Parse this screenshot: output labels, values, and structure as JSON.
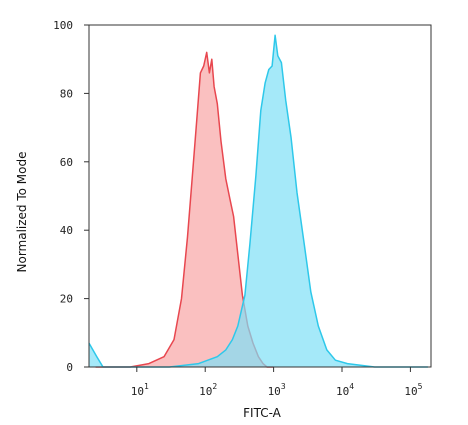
{
  "chart_data": {
    "type": "area",
    "xlabel": "FITC-A",
    "ylabel": "Normalized To Mode",
    "xscale": "log",
    "xlim": [
      2,
      200000
    ],
    "ylim": [
      0,
      100
    ],
    "yticks": [
      0,
      20,
      40,
      60,
      80,
      100
    ],
    "xticks": [
      {
        "base": "10",
        "exp": "1",
        "value": 10
      },
      {
        "base": "10",
        "exp": "2",
        "value": 100
      },
      {
        "base": "10",
        "exp": "3",
        "value": 1000
      },
      {
        "base": "10",
        "exp": "4",
        "value": 10000
      },
      {
        "base": "10",
        "exp": "5",
        "value": 100000
      }
    ],
    "grid": false,
    "legend": "none",
    "series": [
      {
        "color": "#e8474f",
        "fill": "#f8a5a5",
        "x": [
          2.5,
          8,
          15,
          25,
          35,
          45,
          55,
          65,
          75,
          85,
          95,
          105,
          115,
          125,
          135,
          150,
          170,
          200,
          230,
          260,
          300,
          350,
          420,
          500,
          600,
          700,
          800,
          1000
        ],
        "y": [
          0,
          0,
          1,
          3,
          8,
          20,
          38,
          56,
          72,
          86,
          88,
          92,
          86,
          90,
          82,
          77,
          66,
          55,
          49,
          44,
          33,
          21,
          12,
          7,
          3,
          1,
          0,
          0
        ]
      },
      {
        "color": "#2ec8ea",
        "fill": "#7fdff6",
        "x": [
          2,
          2.6,
          3.2,
          5,
          30,
          80,
          150,
          200,
          250,
          300,
          380,
          450,
          550,
          650,
          750,
          850,
          950,
          1050,
          1150,
          1300,
          1500,
          1800,
          2200,
          2800,
          3500,
          4500,
          6000,
          8000,
          12000,
          30000,
          100000,
          180000
        ],
        "y": [
          7,
          3,
          0,
          0,
          0,
          1,
          3,
          5,
          8,
          12,
          21,
          36,
          56,
          75,
          83,
          87,
          88,
          97,
          91,
          89,
          78,
          67,
          51,
          36,
          22,
          12,
          5,
          2,
          1,
          0,
          0,
          0
        ]
      }
    ]
  }
}
